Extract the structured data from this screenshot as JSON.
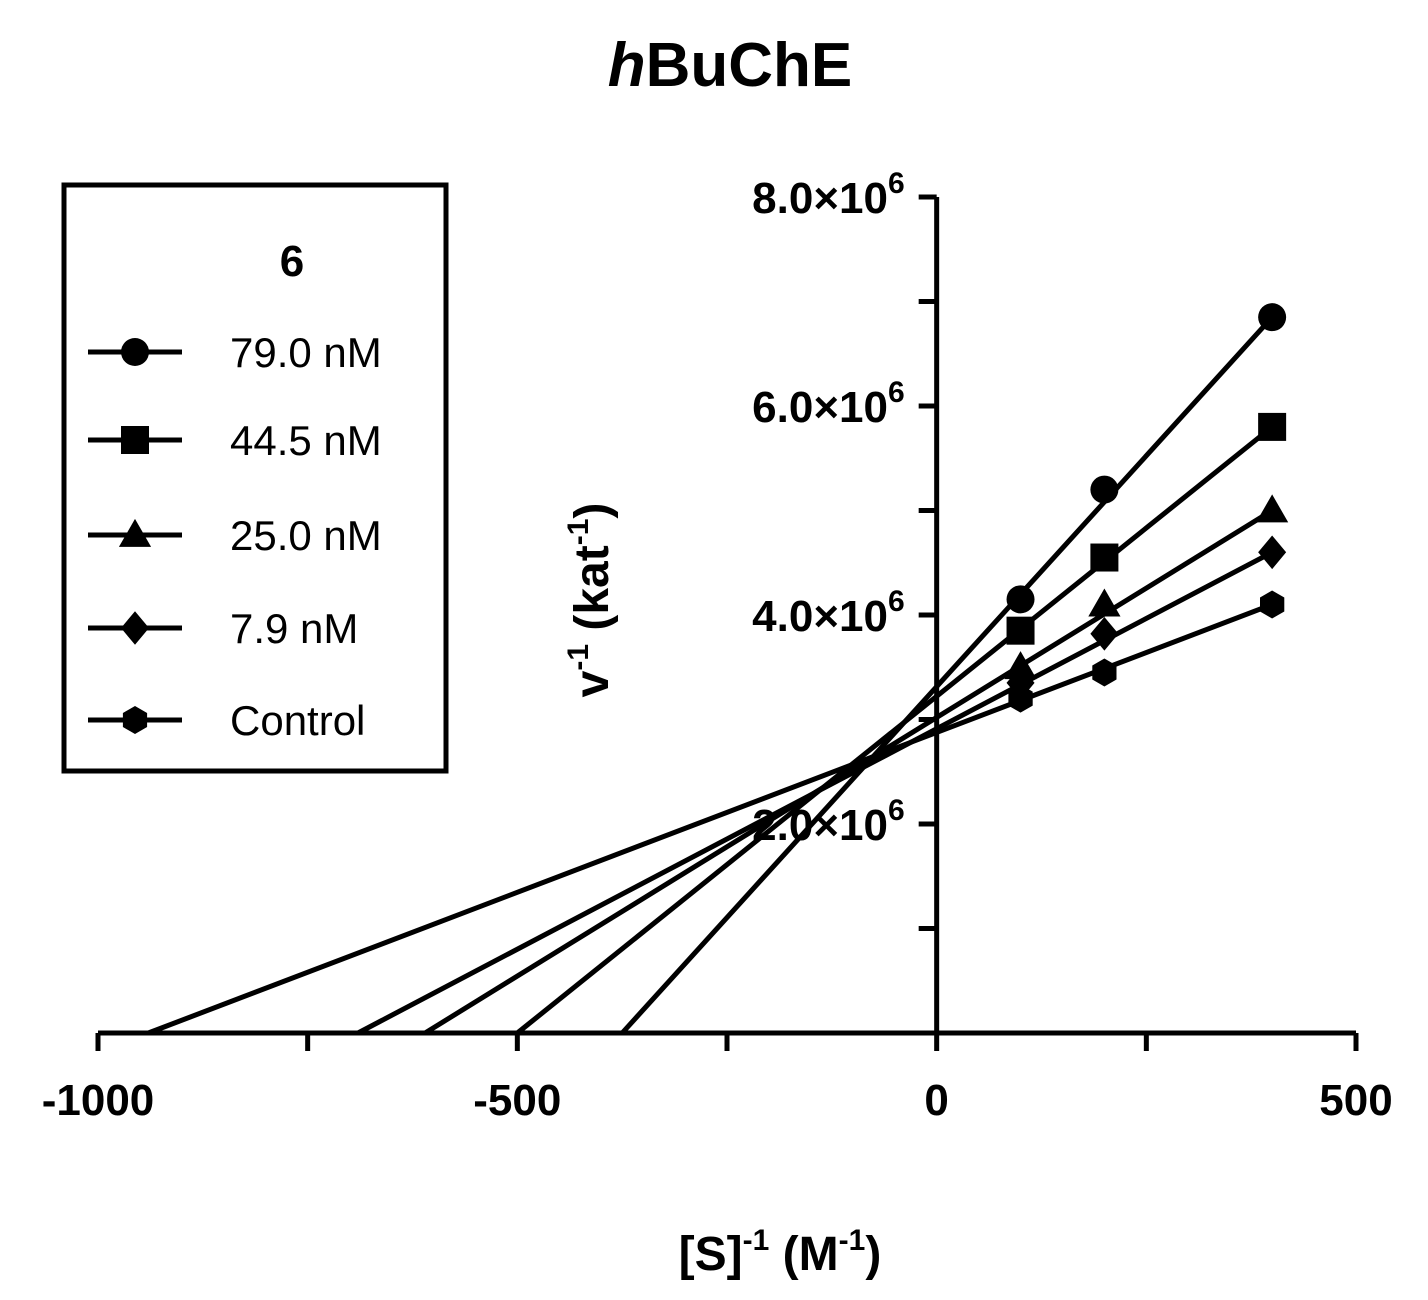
{
  "chart_data": {
    "type": "line",
    "title_italic": "h",
    "title_rest": "BuChE",
    "xlabel": {
      "base": "[S]",
      "sup1": "-1",
      "mid": " (M",
      "sup2": "-1",
      "end": ")"
    },
    "ylabel": {
      "base": "v",
      "sup1": "-1",
      "mid": " (kat",
      "sup2": "-1",
      "end": ")"
    },
    "xlim": [
      -1000,
      500
    ],
    "ylim": [
      0,
      8000000
    ],
    "x_ticks": [
      -1000,
      -750,
      -500,
      -250,
      0,
      250,
      500
    ],
    "x_tick_labels": [
      "-1000",
      "",
      "-500",
      "",
      "0",
      "",
      "500"
    ],
    "y_ticks": [
      0,
      1000000,
      2000000,
      3000000,
      4000000,
      5000000,
      6000000,
      7000000,
      8000000
    ],
    "y_tick_labels": [
      {
        "mant": "",
        "exp": ""
      },
      {
        "mant": "",
        "exp": ""
      },
      {
        "mant": "2.0×10",
        "exp": "6"
      },
      {
        "mant": "",
        "exp": ""
      },
      {
        "mant": "4.0×10",
        "exp": "6"
      },
      {
        "mant": "",
        "exp": ""
      },
      {
        "mant": "6.0×10",
        "exp": "6"
      },
      {
        "mant": "",
        "exp": ""
      },
      {
        "mant": "8.0×10",
        "exp": "6"
      }
    ],
    "legend_title": "6",
    "legend_position": "top-left",
    "series": [
      {
        "name": "79.0 nM",
        "marker": "circle",
        "x_intercept": -375,
        "x": [
          100,
          200,
          400
        ],
        "y": [
          4150000,
          5200000,
          6850000
        ]
      },
      {
        "name": "44.5 nM",
        "marker": "square",
        "x_intercept": -500,
        "x": [
          100,
          200,
          400
        ],
        "y": [
          3850000,
          4550000,
          5800000
        ]
      },
      {
        "name": "25.0 nM",
        "marker": "triangle",
        "x_intercept": -610,
        "x": [
          100,
          200,
          400
        ],
        "y": [
          3500000,
          4100000,
          5000000
        ]
      },
      {
        "name": "7.9 nM",
        "marker": "diamond",
        "x_intercept": -690,
        "x": [
          100,
          200,
          400
        ],
        "y": [
          3350000,
          3820000,
          4600000
        ]
      },
      {
        "name": "Control",
        "marker": "hexagon",
        "x_intercept": -940,
        "x": [
          100,
          200,
          400
        ],
        "y": [
          3200000,
          3450000,
          4100000
        ]
      }
    ],
    "grid": false
  }
}
